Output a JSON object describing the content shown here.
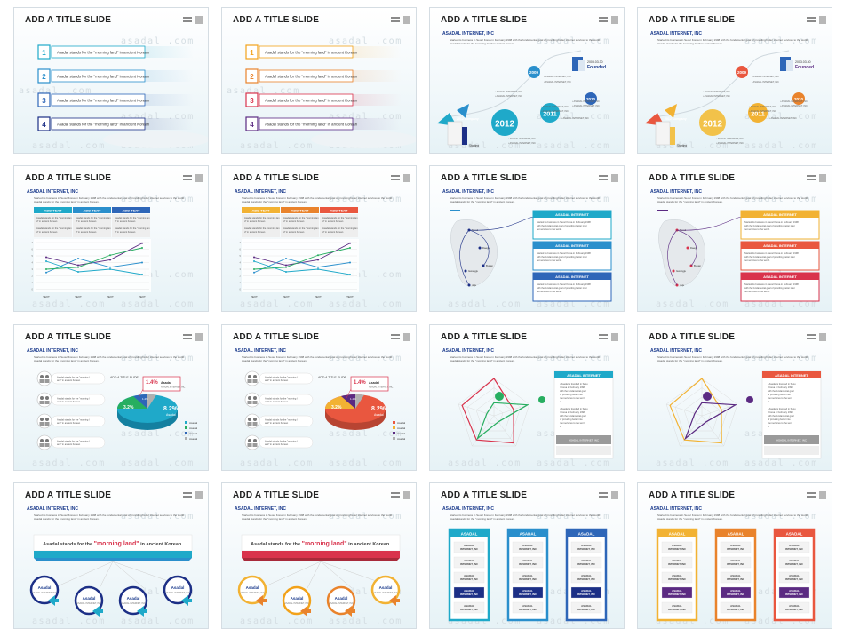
{
  "title": "ADD A TITLE SLIDE",
  "watermark": "asadal .com",
  "company": "ASADAL INTERNET, INC",
  "company_dot": "ASADAL INTERNET, INC.",
  "desc": "Started its business in Seoul Korea in February 1998 with the fundamental goal of providing better internet services to the world. Asadal stands for the \"morning land\" in ancient Korean.",
  "list_item": "Asadal stands for the \"morning land\" in ancient Korean",
  "list_numbers": [
    "1",
    "2",
    "3",
    "4"
  ],
  "timeline": {
    "years": [
      "2009",
      "2010",
      "2011",
      "2012"
    ],
    "founded_year": "2003.03.30",
    "founded": "Founded",
    "company_label": "2012 Company",
    "starting": "Starting",
    "item": "ASADAL INTERNET, INC"
  },
  "table": {
    "headers": [
      "ADD TEXT",
      "ADD TEXT",
      "ADD TEXT"
    ],
    "cell": "Asadal stands for the \"morning land\" in ancient Korean",
    "x_labels": [
      "TEXT",
      "TEXT",
      "TEXT",
      "TEXT"
    ],
    "y_labels": [
      "7",
      "6",
      "5",
      "4",
      "3",
      "2",
      "1",
      "0"
    ]
  },
  "map": {
    "panel": "ASADAL INTERNET",
    "text": "Started its business in Seoul Korea in February 1998 with the fundamental goal of providing better internet services to the world.",
    "cities": [
      "Seoul",
      "Daegu",
      "Busan",
      "Gwangju",
      "Jeju"
    ]
  },
  "pie": {
    "label": "ADD A TITLE SLIDE",
    "p1": "1.4%",
    "p2": "8.2%",
    "p3": "3.2%",
    "p4": "1.2%",
    "name": "Asadal",
    "legend": [
      "Asadal",
      "Asadal",
      "Asadal",
      "Asadal"
    ],
    "row": "Asadal stands for the \"morning land\" in ancient Korean"
  },
  "radar": {
    "panel": "ASADAL INTERNET",
    "text": "Asadal is founded in Seoul Korea in February 1998 with the fundamental goal of providing better internet services to the world.",
    "footer": "ASADAL INTERNET, INC"
  },
  "banner": {
    "pre": "Asadal stands for the",
    "highlight": "\"morning land\"",
    "post": "in ancient Korean.",
    "circle": "Asadal",
    "circle_sub": "ASADAL INTERNET, INC"
  },
  "columns": {
    "header": "ASADAL",
    "cell": "ASADAL INTERNET, INC"
  },
  "slides": [
    {
      "variant": "list",
      "theme": "blue"
    },
    {
      "variant": "list",
      "theme": "multi"
    },
    {
      "variant": "timeline",
      "theme": "blue"
    },
    {
      "variant": "timeline",
      "theme": "multi"
    },
    {
      "variant": "table",
      "theme": "blue"
    },
    {
      "variant": "table",
      "theme": "multi"
    },
    {
      "variant": "map",
      "theme": "blue"
    },
    {
      "variant": "map",
      "theme": "multi"
    },
    {
      "variant": "pie",
      "theme": "blue"
    },
    {
      "variant": "pie",
      "theme": "multi"
    },
    {
      "variant": "radar",
      "theme": "blue"
    },
    {
      "variant": "radar",
      "theme": "multi"
    },
    {
      "variant": "banner",
      "theme": "blue"
    },
    {
      "variant": "banner",
      "theme": "multi"
    },
    {
      "variant": "columns",
      "theme": "blue"
    },
    {
      "variant": "columns",
      "theme": "multi"
    }
  ],
  "colors": {
    "blue_theme": [
      "#1fa9c9",
      "#2a8fcc",
      "#2e66b8",
      "#1c2f86"
    ],
    "multi_theme": [
      "#f2a21a",
      "#e9832c",
      "#d9334c",
      "#5b2a82"
    ],
    "navy": "#1a3a8c",
    "green": "#27ae60",
    "gray": "#8a8a8a"
  }
}
